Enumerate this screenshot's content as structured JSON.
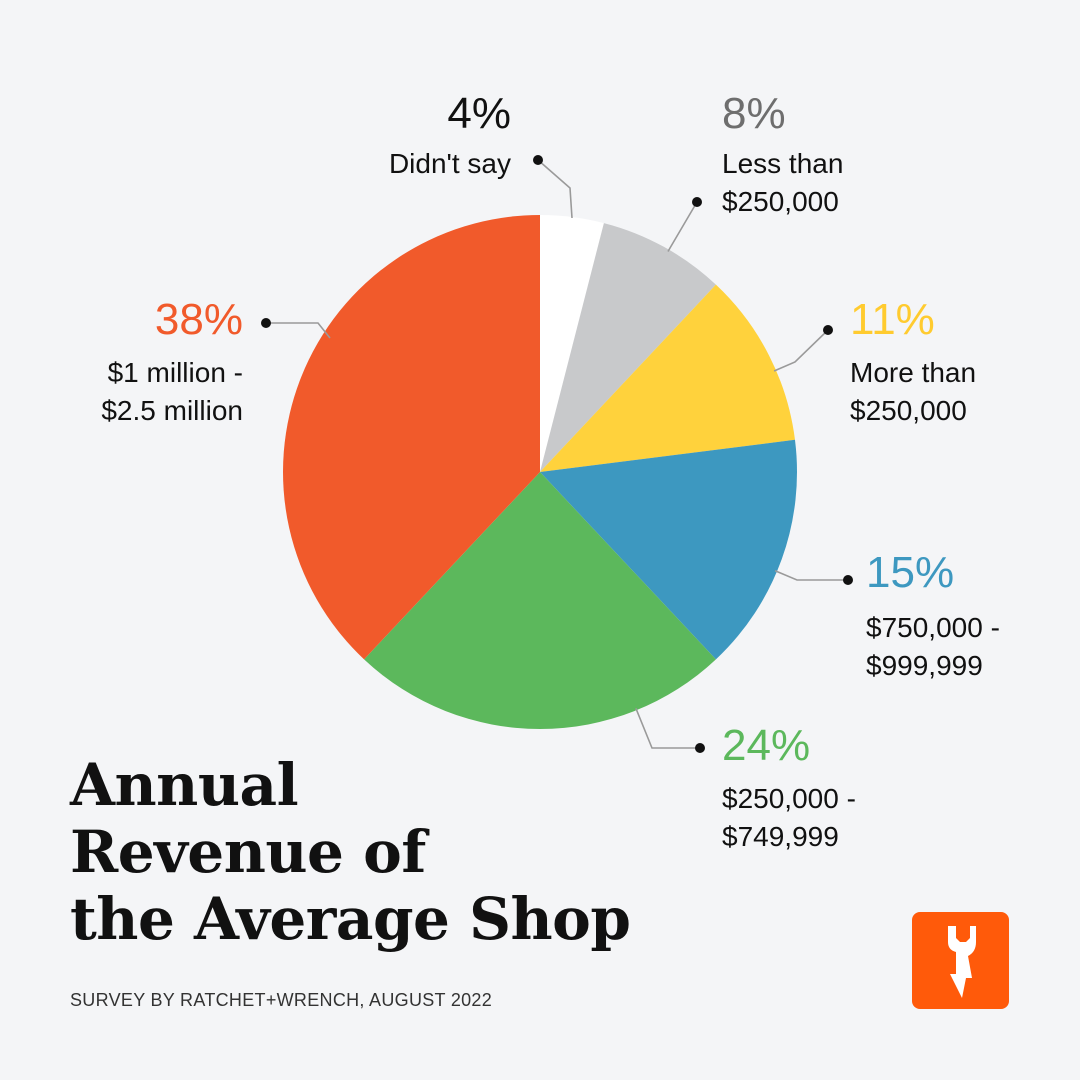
{
  "chart_data": {
    "type": "pie",
    "title": "Annual Revenue of the Average Shop",
    "title_lines": [
      "Annual",
      "Revenue of",
      "the Average Shop"
    ],
    "source": "SURVEY BY RATCHET+WRENCH, AUGUST 2022",
    "slices": [
      {
        "pct": "4%",
        "value": 4,
        "label_lines": [
          "Didn't say"
        ],
        "color": "#ffffff",
        "text_color": "#111111"
      },
      {
        "pct": "8%",
        "value": 8,
        "label_lines": [
          "Less than",
          "$250,000"
        ],
        "color": "#c8c9cb",
        "text_color": "#6e6e6e"
      },
      {
        "pct": "11%",
        "value": 11,
        "label_lines": [
          "More than",
          "$250,000"
        ],
        "color": "#ffd23c",
        "text_color": "#ffcb2f"
      },
      {
        "pct": "15%",
        "value": 15,
        "label_lines": [
          "$750,000 -",
          "$999,999"
        ],
        "color": "#3d98c0",
        "text_color": "#3d98c0"
      },
      {
        "pct": "24%",
        "value": 24,
        "label_lines": [
          "$250,000 -",
          "$749,999"
        ],
        "color": "#5cb85c",
        "text_color": "#5cb85c"
      },
      {
        "pct": "38%",
        "value": 38,
        "label_lines": [
          "$1 million -",
          "$2.5 million"
        ],
        "color": "#f15a2b",
        "text_color": "#f15a2b"
      }
    ]
  },
  "logo": {
    "icon": "wrench-lightning-icon",
    "color": "#ff5a0a"
  }
}
